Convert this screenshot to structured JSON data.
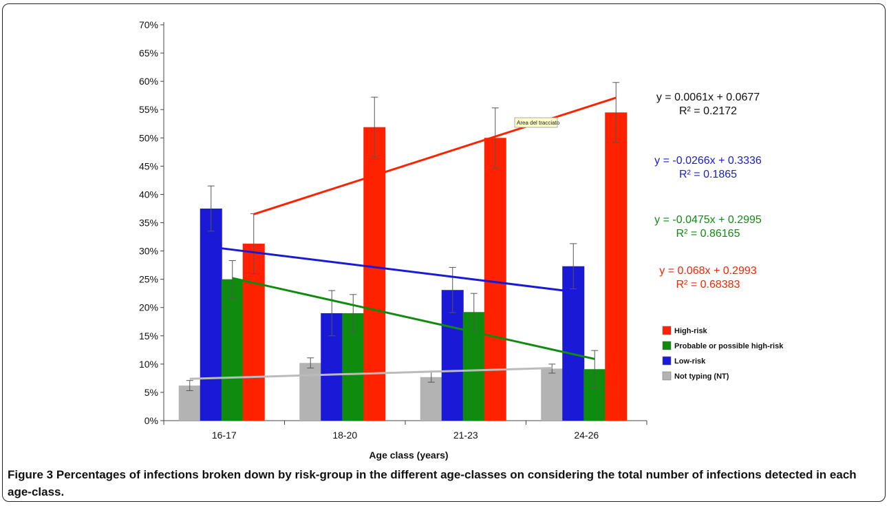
{
  "chart_data": {
    "type": "bar",
    "title": "",
    "xlabel": "Age class (years)",
    "ylabel": "",
    "ylim": [
      0,
      70
    ],
    "y_ticks": [
      "0%",
      "5%",
      "10%",
      "15%",
      "20%",
      "25%",
      "30%",
      "35%",
      "40%",
      "45%",
      "50%",
      "55%",
      "60%",
      "65%",
      "70%"
    ],
    "categories": [
      "16-17",
      "18-20",
      "21-23",
      "24-26"
    ],
    "series": [
      {
        "name": "Not typing (NT)",
        "color": "#b3b3b3",
        "values": [
          6.2,
          10.2,
          7.7,
          9.2
        ],
        "errors": [
          0.9,
          0.9,
          0.9,
          0.8
        ]
      },
      {
        "name": "Low-risk",
        "color": "#1a1ad6",
        "values": [
          37.5,
          19.0,
          23.1,
          27.3
        ],
        "errors": [
          4.0,
          4.0,
          4.0,
          4.0
        ]
      },
      {
        "name": "Probable or possible high-risk",
        "color": "#0f8c0f",
        "values": [
          25.0,
          19.0,
          19.2,
          9.1
        ],
        "errors": [
          3.3,
          3.3,
          3.3,
          3.3
        ]
      },
      {
        "name": "High-risk",
        "color": "#ff2200",
        "values": [
          31.3,
          51.9,
          50.0,
          54.5
        ],
        "errors": [
          5.3,
          5.3,
          5.3,
          5.3
        ]
      }
    ],
    "trendlines": [
      {
        "series": "Not typing (NT)",
        "color": "#bbbbbb",
        "y_start": 7.4,
        "y_end": 9.3,
        "equation": "y = 0.0061x + 0.0677",
        "r2": "R² = 0.2172",
        "label_color": "#111111"
      },
      {
        "series": "Low-risk",
        "color": "#1a1ad6",
        "y_start": 30.7,
        "y_end": 22.8,
        "equation": "y = -0.0266x + 0.3336",
        "r2": "R² = 0.1865",
        "label_color": "#1a1ad6"
      },
      {
        "series": "Probable or possible high-risk",
        "color": "#0f8c0f",
        "y_start": 25.2,
        "y_end": 10.9,
        "equation": "y = -0.0475x + 0.2995",
        "r2": "R² = 0.86165",
        "label_color": "#0f8c0f"
      },
      {
        "series": "High-risk",
        "color": "#ff2200",
        "y_start": 36.5,
        "y_end": 57.1,
        "equation": "y = 0.068x + 0.2993",
        "r2": "R² = 0.68383",
        "label_color": "#ff2200"
      }
    ],
    "legend": {
      "placement": "right",
      "entries": [
        {
          "name": "High-risk",
          "color": "#ff2200"
        },
        {
          "name": "Probable or possible high-risk",
          "color": "#0f8c0f"
        },
        {
          "name": "Low-risk",
          "color": "#1a1ad6"
        },
        {
          "name": "Not typing (NT)",
          "color": "#b3b3b3"
        }
      ]
    },
    "tooltip": "Area del tracciato",
    "grid": false
  },
  "caption": {
    "label": "Figure 3",
    "text": "Percentages of infections broken down by risk-group in the different age-classes on considering the total number of infections detected in each age-class."
  }
}
